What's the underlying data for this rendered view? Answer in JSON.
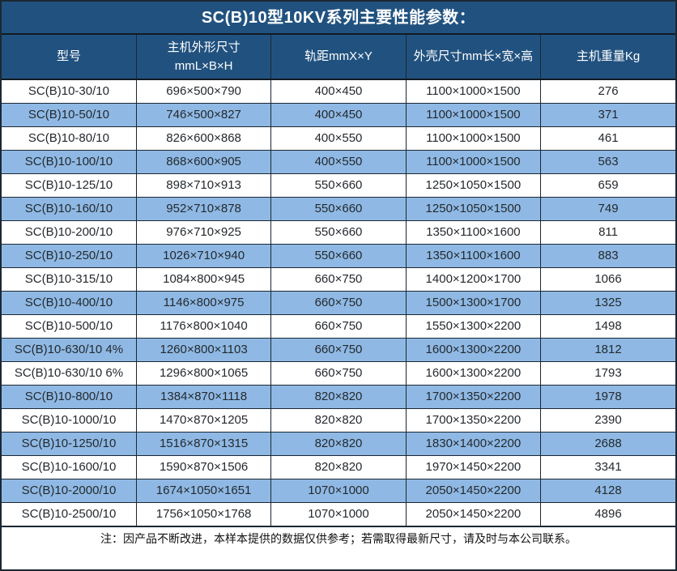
{
  "title": "SC(B)10型10KV系列主要性能参数：",
  "colors": {
    "header_bg": "#21527F",
    "row_alt_bg": "#8FB9E4",
    "row_bg": "#FFFFFF",
    "grid": "#1B2733",
    "header_text": "#FFFFFF",
    "cell_text": "#24292E"
  },
  "columns": [
    {
      "label": "型号",
      "label2": ""
    },
    {
      "label": "主机外形尺寸",
      "label2": "mmL×B×H"
    },
    {
      "label": "轨距mmX×Y",
      "label2": ""
    },
    {
      "label": "外壳尺寸mm长×宽×高",
      "label2": ""
    },
    {
      "label": "主机重量Kg",
      "label2": ""
    }
  ],
  "rows": [
    [
      "SC(B)10-30/10",
      "696×500×790",
      "400×450",
      "1100×1000×1500",
      "276"
    ],
    [
      "SC(B)10-50/10",
      "746×500×827",
      "400×450",
      "1100×1000×1500",
      "371"
    ],
    [
      "SC(B)10-80/10",
      "826×600×868",
      "400×550",
      "1100×1000×1500",
      "461"
    ],
    [
      "SC(B)10-100/10",
      "868×600×905",
      "400×550",
      "1100×1000×1500",
      "563"
    ],
    [
      "SC(B)10-125/10",
      "898×710×913",
      "550×660",
      "1250×1050×1500",
      "659"
    ],
    [
      "SC(B)10-160/10",
      "952×710×878",
      "550×660",
      "1250×1050×1500",
      "749"
    ],
    [
      "SC(B)10-200/10",
      "976×710×925",
      "550×660",
      "1350×1100×1600",
      "811"
    ],
    [
      "SC(B)10-250/10",
      "1026×710×940",
      "550×660",
      "1350×1100×1600",
      "883"
    ],
    [
      "SC(B)10-315/10",
      "1084×800×945",
      "660×750",
      "1400×1200×1700",
      "1066"
    ],
    [
      "SC(B)10-400/10",
      "1146×800×975",
      "660×750",
      "1500×1300×1700",
      "1325"
    ],
    [
      "SC(B)10-500/10",
      "1176×800×1040",
      "660×750",
      "1550×1300×2200",
      "1498"
    ],
    [
      "SC(B)10-630/10 4%",
      "1260×800×1103",
      "660×750",
      "1600×1300×2200",
      "1812"
    ],
    [
      "SC(B)10-630/10 6%",
      "1296×800×1065",
      "660×750",
      "1600×1300×2200",
      "1793"
    ],
    [
      "SC(B)10-800/10",
      "1384×870×1118",
      "820×820",
      "1700×1350×2200",
      "1978"
    ],
    [
      "SC(B)10-1000/10",
      "1470×870×1205",
      "820×820",
      "1700×1350×2200",
      "2390"
    ],
    [
      "SC(B)10-1250/10",
      "1516×870×1315",
      "820×820",
      "1830×1400×2200",
      "2688"
    ],
    [
      "SC(B)10-1600/10",
      "1590×870×1506",
      "820×820",
      "1970×1450×2200",
      "3341"
    ],
    [
      "SC(B)10-2000/10",
      "1674×1050×1651",
      "1070×1000",
      "2050×1450×2200",
      "4128"
    ],
    [
      "SC(B)10-2500/10",
      "1756×1050×1768",
      "1070×1000",
      "2050×1450×2200",
      "4896"
    ]
  ],
  "footnote": "注：因产品不断改进，本样本提供的数据仅供参考；若需取得最新尺寸，请及时与本公司联系。"
}
